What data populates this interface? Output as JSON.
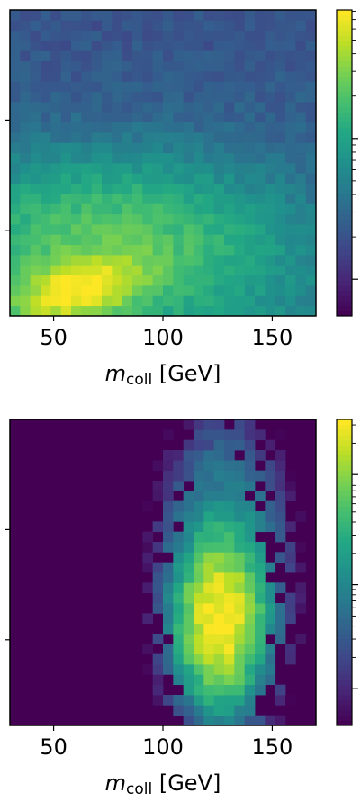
{
  "chart_data": [
    {
      "type": "heatmap",
      "title": "",
      "xlabel_main": "m",
      "xlabel_sub": "coll",
      "xlabel_unit": "[GeV]",
      "ylabel": "",
      "xlim": [
        30,
        170
      ],
      "xticks": [
        50,
        100,
        150
      ],
      "y_ticks_count": 2,
      "colormap": "viridis",
      "colorbar_scale": "log",
      "bins": [
        30,
        30
      ],
      "peak": {
        "x": 60,
        "y_frac": 0.1
      },
      "description_of_density": "broad band rising from lower-left, peak near x = 55–70, long tail toward high x"
    },
    {
      "type": "heatmap",
      "title": "",
      "xlabel_main": "m",
      "xlabel_sub": "coll",
      "xlabel_unit": "[GeV]",
      "ylabel": "",
      "xlim": [
        30,
        170
      ],
      "xticks": [
        50,
        100,
        150
      ],
      "y_ticks_count": 2,
      "colormap": "viridis",
      "colorbar_scale": "log",
      "bins": [
        30,
        30
      ],
      "peak": {
        "x": 125,
        "y_frac": 0.35
      },
      "description_of_density": "vertical elongated cluster centered near x = 125, empty below x ≈ 70"
    }
  ]
}
